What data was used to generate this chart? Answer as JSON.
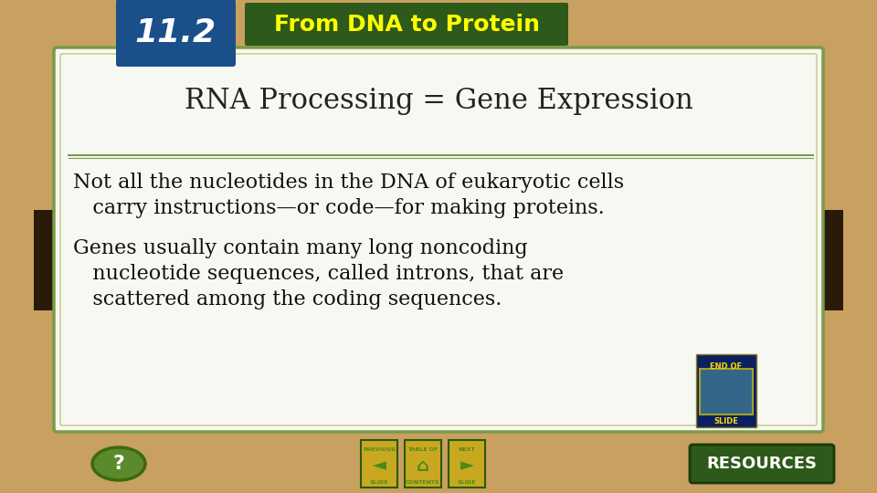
{
  "bg_color": "#c8a060",
  "slide_bg": "#f8f8f2",
  "header_box_color": "#1a4f8a",
  "header_box_text": "11.2",
  "header_banner_color": "#2d5a1a",
  "header_banner_text": "From DNA to Protein",
  "title_text": "RNA Processing = Gene Expression",
  "title_color": "#222222",
  "title_fontsize": 22,
  "body_line1": "Not all the nucleotides in the DNA of eukaryotic cells",
  "body_line2": "   carry instructions—or code—for making proteins.",
  "body_line3": "Genes usually contain many long noncoding",
  "body_line4": "   nucleotide sequences, called introns, that are",
  "body_line5": "   scattered among the coding sequences.",
  "body_color": "#111111",
  "body_fontsize": 16,
  "divider_color": "#7a9a4a",
  "border_outer_color": "#7a9a4a",
  "border_inner_color": "#c0c880",
  "tab_color": "#2a1a0a",
  "resources_btn_color": "#2d5a1a",
  "resources_btn_border": "#1a3a0a",
  "resources_text": "RESOURCES",
  "question_btn_color1": "#5a8a2a",
  "question_btn_color2": "#3a6a10",
  "nav_btn_color": "#4a8a1a",
  "nav_btn_border": "#2a5a0a",
  "end_box_color": "#0a2060",
  "end_box_text_color": "#ffd700",
  "yellow_text": "#ffff00",
  "white": "#ffffff"
}
